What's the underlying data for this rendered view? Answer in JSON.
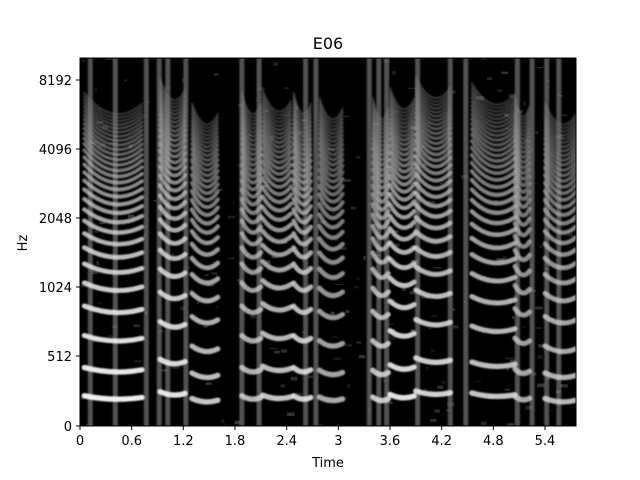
{
  "chart_data": {
    "type": "heatmap",
    "title": "E06",
    "xlabel": "Time",
    "ylabel": "Hz",
    "xlim": [
      0,
      5.76
    ],
    "x_ticks": [
      {
        "value": 0,
        "label": "0"
      },
      {
        "value": 0.6,
        "label": "0.6"
      },
      {
        "value": 1.2,
        "label": "1.2"
      },
      {
        "value": 1.8,
        "label": "1.8"
      },
      {
        "value": 2.4,
        "label": "2.4"
      },
      {
        "value": 3.0,
        "label": "3"
      },
      {
        "value": 3.6,
        "label": "3.6"
      },
      {
        "value": 4.2,
        "label": "4.2"
      },
      {
        "value": 4.8,
        "label": "4.8"
      },
      {
        "value": 5.4,
        "label": "5.4"
      }
    ],
    "y_scale": "log2 above 512 Hz, linear below",
    "ylim": [
      0,
      11025
    ],
    "y_ticks": [
      {
        "value": 0,
        "label": "0"
      },
      {
        "value": 512,
        "label": "512"
      },
      {
        "value": 1024,
        "label": "1024"
      },
      {
        "value": 2048,
        "label": "2048"
      },
      {
        "value": 4096,
        "label": "4096"
      },
      {
        "value": 8192,
        "label": "8192"
      }
    ],
    "colormap": "grayscale",
    "background_color": "#000000",
    "voiced_segments": [
      {
        "start": 0.05,
        "end": 0.72,
        "f0": 200,
        "brightness": 0.95
      },
      {
        "start": 0.93,
        "end": 1.22,
        "f0": 230,
        "brightness": 0.9
      },
      {
        "start": 1.3,
        "end": 1.6,
        "f0": 180,
        "brightness": 0.8
      },
      {
        "start": 1.88,
        "end": 2.1,
        "f0": 200,
        "brightness": 0.75
      },
      {
        "start": 2.12,
        "end": 2.45,
        "f0": 205,
        "brightness": 0.8
      },
      {
        "start": 2.48,
        "end": 2.68,
        "f0": 200,
        "brightness": 0.85
      },
      {
        "start": 2.78,
        "end": 3.05,
        "f0": 190,
        "brightness": 0.7
      },
      {
        "start": 3.4,
        "end": 3.58,
        "f0": 190,
        "brightness": 0.8
      },
      {
        "start": 3.6,
        "end": 3.88,
        "f0": 210,
        "brightness": 0.9
      },
      {
        "start": 3.9,
        "end": 4.3,
        "f0": 235,
        "brightness": 0.85
      },
      {
        "start": 4.55,
        "end": 5.05,
        "f0": 220,
        "brightness": 0.8
      },
      {
        "start": 5.05,
        "end": 5.22,
        "f0": 195,
        "brightness": 0.7
      },
      {
        "start": 5.4,
        "end": 5.76,
        "f0": 180,
        "brightness": 0.75
      }
    ],
    "vertical_bursts": [
      0.12,
      0.41,
      0.77,
      0.92,
      1.02,
      1.23,
      1.88,
      2.08,
      2.62,
      2.74,
      3.36,
      3.47,
      3.56,
      3.92,
      4.3,
      4.48,
      5.08,
      5.25,
      5.42,
      5.56
    ]
  }
}
